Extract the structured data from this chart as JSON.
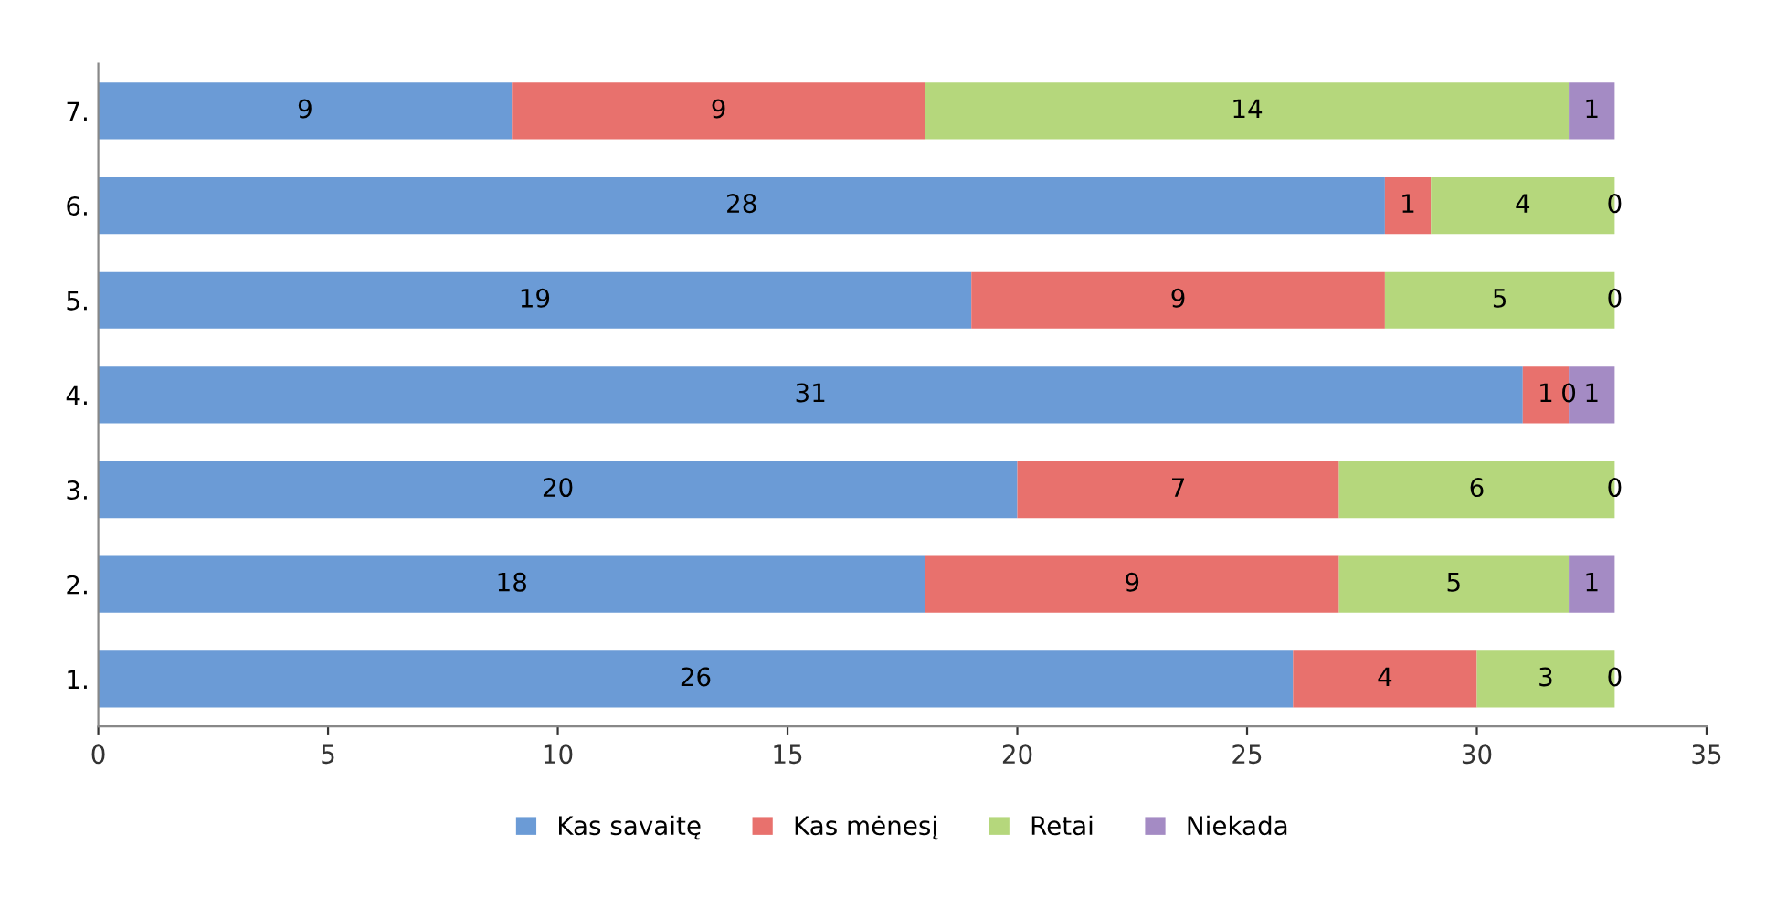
{
  "chart_data": {
    "type": "bar",
    "orientation": "horizontal",
    "stacked": true,
    "data_labels": true,
    "grid": false,
    "legend": "bottom",
    "categories": [
      "7.",
      "6.",
      "5.",
      "4.",
      "3.",
      "2.",
      "1."
    ],
    "xlim": [
      0,
      35
    ],
    "xticks": [
      0,
      5,
      10,
      15,
      20,
      25,
      30,
      35
    ],
    "series": [
      {
        "name": "Kas savaitę",
        "color": "#6b9bd6",
        "values": [
          9,
          28,
          19,
          31,
          20,
          18,
          26
        ]
      },
      {
        "name": "Kas mėnesį",
        "color": "#e8716d",
        "values": [
          9,
          1,
          9,
          1,
          7,
          9,
          4
        ]
      },
      {
        "name": "Retai",
        "color": "#b5d77c",
        "values": [
          14,
          4,
          5,
          0,
          6,
          5,
          3
        ]
      },
      {
        "name": "Niekada",
        "color": "#a48bc4",
        "values": [
          1,
          0,
          0,
          1,
          0,
          1,
          0
        ]
      }
    ]
  }
}
